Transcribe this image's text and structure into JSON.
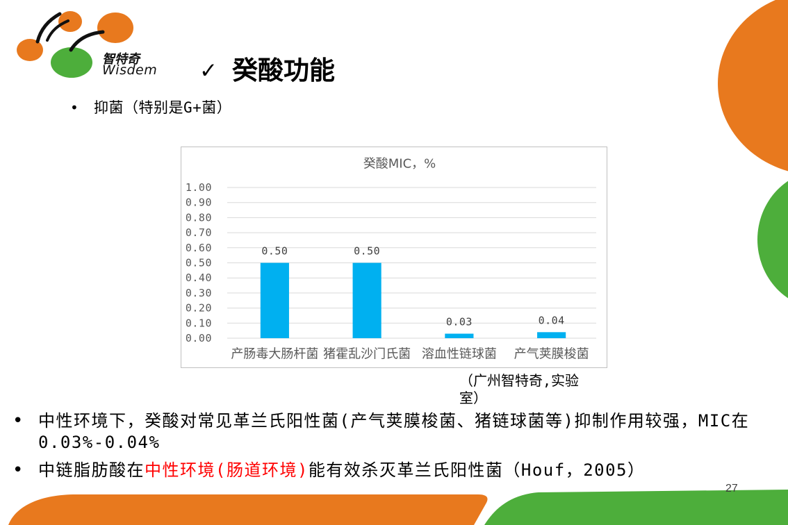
{
  "logo": {
    "name_cn": "智特奇",
    "name_en": "Wisdem"
  },
  "slide": {
    "title_mark": "✓",
    "title": "癸酸功能",
    "page_number": "27"
  },
  "intro_bullet": {
    "marker": "•",
    "text": "抑菌（特别是G+菌）"
  },
  "chart_data": {
    "type": "bar",
    "title": "癸酸MIC，%",
    "categories": [
      "产肠毒大肠杆菌",
      "猪霍乱沙门氏菌",
      "溶血性链球菌",
      "产气荚膜梭菌"
    ],
    "values": [
      0.5,
      0.5,
      0.03,
      0.04
    ],
    "data_labels": [
      "0.50",
      "0.50",
      "0.03",
      "0.04"
    ],
    "y_ticks": [
      "1.00",
      "0.90",
      "0.80",
      "0.70",
      "0.60",
      "0.50",
      "0.40",
      "0.30",
      "0.20",
      "0.10",
      "0.00"
    ],
    "ylim": [
      0,
      1.0
    ],
    "grid": true,
    "bar_color": "#00B0F0"
  },
  "source_note": "（广州智特奇,实验室）",
  "bullets": [
    {
      "marker": "•",
      "parts": [
        {
          "text": "中性环境下，癸酸对常见革兰氏阳性菌(产气荚膜梭菌、猪链球菌等)抑制作用较强，MIC在0.03%-0.04%",
          "highlight": false
        }
      ]
    },
    {
      "marker": "•",
      "parts": [
        {
          "text": "中链脂肪酸在",
          "highlight": false
        },
        {
          "text": "中性环境(肠道环境)",
          "highlight": true
        },
        {
          "text": "能有效杀灭革兰氏阳性菌（Houf，2005）",
          "highlight": false
        }
      ]
    }
  ],
  "colors": {
    "accent_orange": "#E8791E",
    "accent_green": "#4DAE3B",
    "highlight_red": "#FF0000",
    "text": "#000000"
  }
}
